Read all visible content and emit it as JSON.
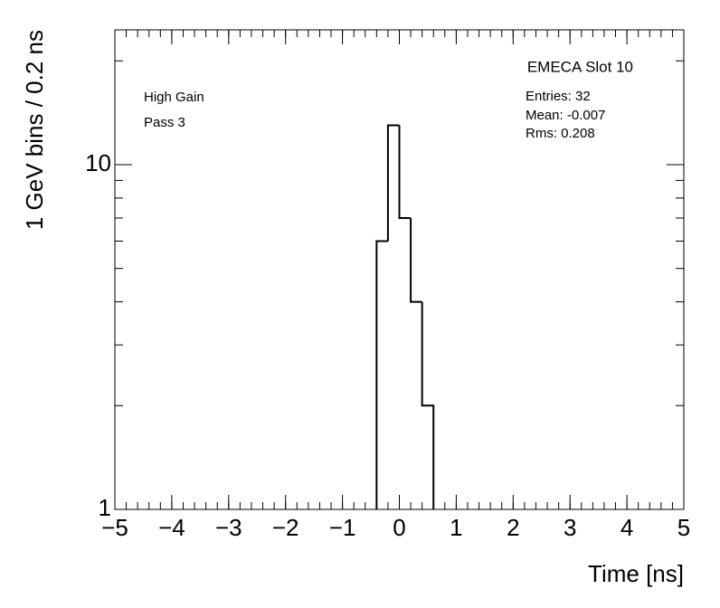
{
  "chart_data": {
    "type": "histogram",
    "title": "EMECA Slot 10",
    "annotations": [
      "High Gain",
      "Pass 3"
    ],
    "stats": [
      "Entries: 32",
      "Mean: -0.007",
      "Rms: 0.208"
    ],
    "x_label": "Time [ns]",
    "y_label": "1 GeV bins / 0.2 ns",
    "bins": [
      -0.4,
      -0.2,
      0,
      0.2,
      0.4,
      0.6
    ],
    "values": [
      6,
      13,
      7,
      4,
      2
    ],
    "color": "#000000",
    "log_y": true,
    "xlim": [
      -5,
      5
    ],
    "xticks": [
      {
        "value": -5,
        "label": "−5"
      },
      {
        "value": -4,
        "label": "−4"
      },
      {
        "value": -3,
        "label": "−3"
      },
      {
        "value": -2,
        "label": "−2"
      },
      {
        "value": -1,
        "label": "−1"
      },
      0,
      1,
      2,
      3,
      4,
      5
    ],
    "ylim": [
      1,
      24.6
    ],
    "yticks": [
      1,
      10
    ]
  }
}
